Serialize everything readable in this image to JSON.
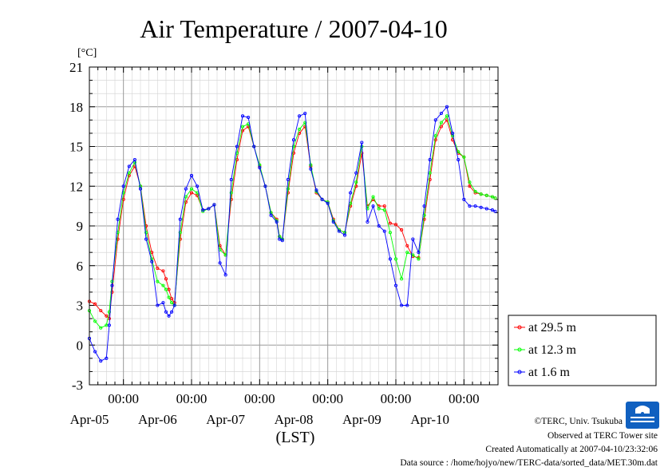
{
  "chart_data": {
    "type": "line",
    "title": "Air Temperature / 2007-04-10",
    "ylabel": "[°C]",
    "xlabel": "(LST)",
    "ylim": [
      -3,
      21
    ],
    "yticks": [
      -3,
      0,
      3,
      6,
      9,
      12,
      15,
      18,
      21
    ],
    "xlim": [
      -12,
      132
    ],
    "x_unit": "hours from 2007-04-05 00:00 LST",
    "time_ticks": [
      "00:00",
      "00:00",
      "00:00",
      "00:00",
      "00:00",
      "00:00"
    ],
    "date_labels": [
      "Apr-05",
      "Apr-06",
      "Apr-07",
      "Apr-08",
      "Apr-09",
      "Apr-10"
    ],
    "grid": true,
    "legend_position": "right",
    "series": [
      {
        "name": "at 29.5 m",
        "color": "#ff0000",
        "x": [
          -12,
          -10,
          -8,
          -6,
          -5,
          -4,
          -2,
          0,
          2,
          4,
          6,
          8,
          10,
          12,
          14,
          15,
          16,
          17,
          18,
          20,
          22,
          24,
          26,
          28,
          30,
          32,
          34,
          36,
          38,
          40,
          42,
          44,
          46,
          48,
          50,
          52,
          54,
          55,
          56,
          58,
          60,
          62,
          64,
          66,
          68,
          70,
          72,
          74,
          76,
          78,
          80,
          82,
          84,
          86,
          88,
          90,
          92,
          94,
          96,
          98,
          100,
          102,
          104,
          106,
          108,
          110,
          112,
          114,
          116,
          118,
          120,
          122,
          124,
          126,
          128,
          130,
          131
        ],
        "values": [
          3.3,
          3.1,
          2.6,
          2.2,
          2.0,
          4.0,
          8.0,
          11.0,
          12.8,
          13.5,
          12.0,
          9.0,
          7.0,
          5.8,
          5.6,
          5.0,
          4.2,
          3.5,
          3.2,
          8.0,
          10.8,
          11.5,
          11.3,
          10.2,
          10.3,
          10.6,
          7.5,
          6.8,
          11.0,
          14.0,
          16.2,
          16.5,
          15.0,
          13.5,
          12.0,
          10.0,
          9.5,
          8.2,
          8.0,
          11.5,
          14.5,
          16.0,
          16.5,
          13.5,
          11.5,
          11.0,
          10.8,
          9.5,
          8.7,
          8.5,
          10.5,
          12.0,
          14.5,
          10.5,
          11.0,
          10.5,
          10.5,
          9.2,
          9.1,
          8.7,
          7.5,
          6.7,
          6.6,
          9.5,
          12.5,
          15.5,
          16.5,
          17.0,
          15.5,
          14.5,
          14.2,
          12.0,
          11.5,
          11.4,
          11.3,
          11.2,
          11.1
        ]
      },
      {
        "name": "at 12.3 m",
        "color": "#00ff00",
        "x": [
          -12,
          -10,
          -8,
          -6,
          -5,
          -4,
          -2,
          0,
          2,
          4,
          6,
          8,
          10,
          12,
          14,
          15,
          16,
          17,
          18,
          20,
          22,
          24,
          26,
          28,
          30,
          32,
          34,
          36,
          38,
          40,
          42,
          44,
          46,
          48,
          50,
          52,
          54,
          55,
          56,
          58,
          60,
          62,
          64,
          66,
          68,
          70,
          72,
          74,
          76,
          78,
          80,
          82,
          84,
          86,
          88,
          90,
          92,
          94,
          96,
          98,
          100,
          102,
          104,
          106,
          108,
          110,
          112,
          114,
          116,
          118,
          120,
          122,
          124,
          126,
          128,
          130,
          131
        ],
        "values": [
          2.6,
          1.8,
          1.3,
          1.5,
          2.5,
          4.8,
          8.5,
          11.5,
          13.0,
          13.8,
          12.0,
          8.5,
          6.5,
          4.8,
          4.5,
          4.2,
          3.6,
          3.2,
          3.0,
          8.5,
          11.2,
          11.8,
          11.5,
          10.1,
          10.3,
          10.6,
          7.2,
          6.8,
          11.5,
          14.5,
          16.5,
          16.7,
          15.0,
          13.6,
          12.0,
          10.0,
          9.4,
          8.2,
          8.0,
          11.8,
          15.0,
          16.3,
          16.8,
          13.6,
          11.6,
          11.0,
          10.8,
          9.4,
          8.7,
          8.5,
          10.7,
          12.3,
          15.0,
          10.3,
          11.2,
          10.3,
          10.2,
          8.5,
          6.5,
          5.0,
          7.0,
          6.8,
          6.5,
          9.8,
          13.0,
          15.8,
          16.8,
          17.3,
          15.8,
          14.6,
          14.2,
          12.3,
          11.6,
          11.4,
          11.3,
          11.2,
          11.1
        ]
      },
      {
        "name": "at 1.6 m",
        "color": "#0000ff",
        "x": [
          -12,
          -10,
          -8,
          -6,
          -5,
          -4,
          -2,
          0,
          2,
          4,
          6,
          8,
          10,
          12,
          14,
          15,
          16,
          17,
          18,
          20,
          22,
          24,
          26,
          28,
          30,
          32,
          34,
          36,
          38,
          40,
          42,
          44,
          46,
          48,
          50,
          52,
          54,
          55,
          56,
          58,
          60,
          62,
          64,
          66,
          68,
          70,
          72,
          74,
          76,
          78,
          80,
          82,
          84,
          86,
          88,
          90,
          92,
          94,
          96,
          98,
          100,
          102,
          104,
          106,
          108,
          110,
          112,
          114,
          116,
          118,
          120,
          122,
          124,
          126,
          128,
          130,
          131
        ],
        "values": [
          0.5,
          -0.5,
          -1.2,
          -1.0,
          1.5,
          4.5,
          9.5,
          12.0,
          13.5,
          14.0,
          11.8,
          8.0,
          6.3,
          3.0,
          3.2,
          2.5,
          2.2,
          2.5,
          3.0,
          9.5,
          11.8,
          12.8,
          12.0,
          10.2,
          10.3,
          10.6,
          6.2,
          5.3,
          12.5,
          15.0,
          17.3,
          17.2,
          15.0,
          13.4,
          12.0,
          9.8,
          9.3,
          8.0,
          7.9,
          12.5,
          15.5,
          17.3,
          17.5,
          13.3,
          11.7,
          11.0,
          10.7,
          9.3,
          8.6,
          8.3,
          11.5,
          13.0,
          15.3,
          9.3,
          10.5,
          9.0,
          8.6,
          6.5,
          4.5,
          3.0,
          3.0,
          8.0,
          7.0,
          10.5,
          14.0,
          17.0,
          17.5,
          18.0,
          16.0,
          14.0,
          11.0,
          10.5,
          10.5,
          10.4,
          10.3,
          10.2,
          10.1
        ]
      }
    ]
  },
  "credits": {
    "copyright": "©TERC, Univ. Tsukuba",
    "observed": "Observed at TERC Tower site",
    "created": "Created Automatically at 2007-04-10/23:32:06",
    "source": "Data source : /home/hojyo/new/TERC-data/sorted_data/MET.30m.dat",
    "logo_text": "TERC"
  }
}
